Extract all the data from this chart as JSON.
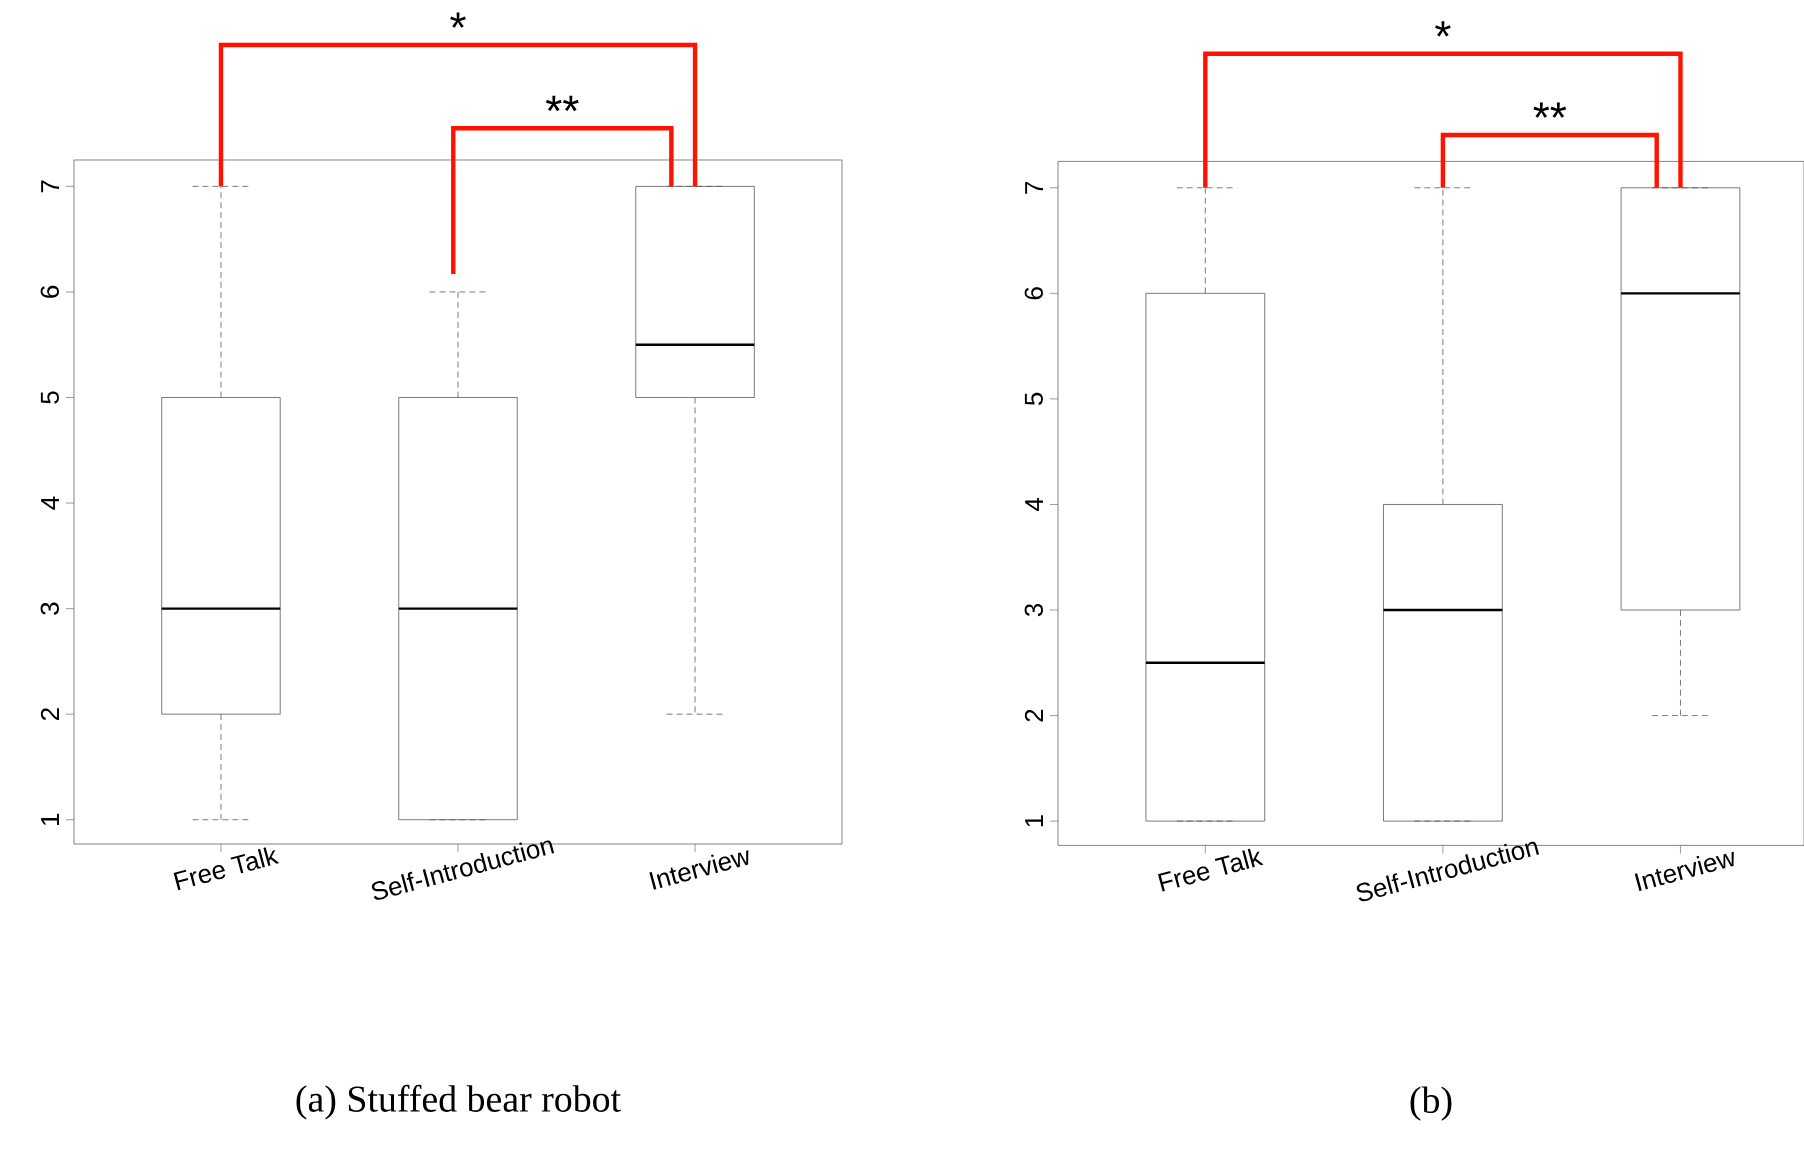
{
  "chart_data": [
    {
      "type": "box",
      "title": "(a) Stuffed bear robot",
      "categories": [
        "Free Talk",
        "Self-Introduction",
        "Interview"
      ],
      "boxes": [
        {
          "low": 1,
          "q1": 2,
          "median": 3,
          "q3": 5,
          "high": 7
        },
        {
          "low": 1,
          "q1": 1,
          "median": 3,
          "q3": 5,
          "high": 6
        },
        {
          "low": 2,
          "q1": 5,
          "median": 5.5,
          "q3": 7,
          "high": 7
        }
      ],
      "ylim": [
        0.77,
        7.25
      ],
      "yticks": [
        1,
        2,
        3,
        4,
        5,
        6,
        7
      ],
      "annotations": [
        "*",
        "**"
      ]
    },
    {
      "type": "box",
      "title": "(b)",
      "categories": [
        "Free Talk",
        "Self-Introduction",
        "Interview"
      ],
      "boxes": [
        {
          "low": 1,
          "q1": 1,
          "median": 2.5,
          "q3": 6,
          "high": 7
        },
        {
          "low": 1,
          "q1": 1,
          "median": 3,
          "q3": 4,
          "high": 7
        },
        {
          "low": 2,
          "q1": 3,
          "median": 6,
          "q3": 7,
          "high": 7
        }
      ],
      "ylim": [
        0.77,
        7.25
      ],
      "yticks": [
        1,
        2,
        3,
        4,
        5,
        6,
        7
      ],
      "annotations": [
        "*",
        "**"
      ]
    }
  ]
}
